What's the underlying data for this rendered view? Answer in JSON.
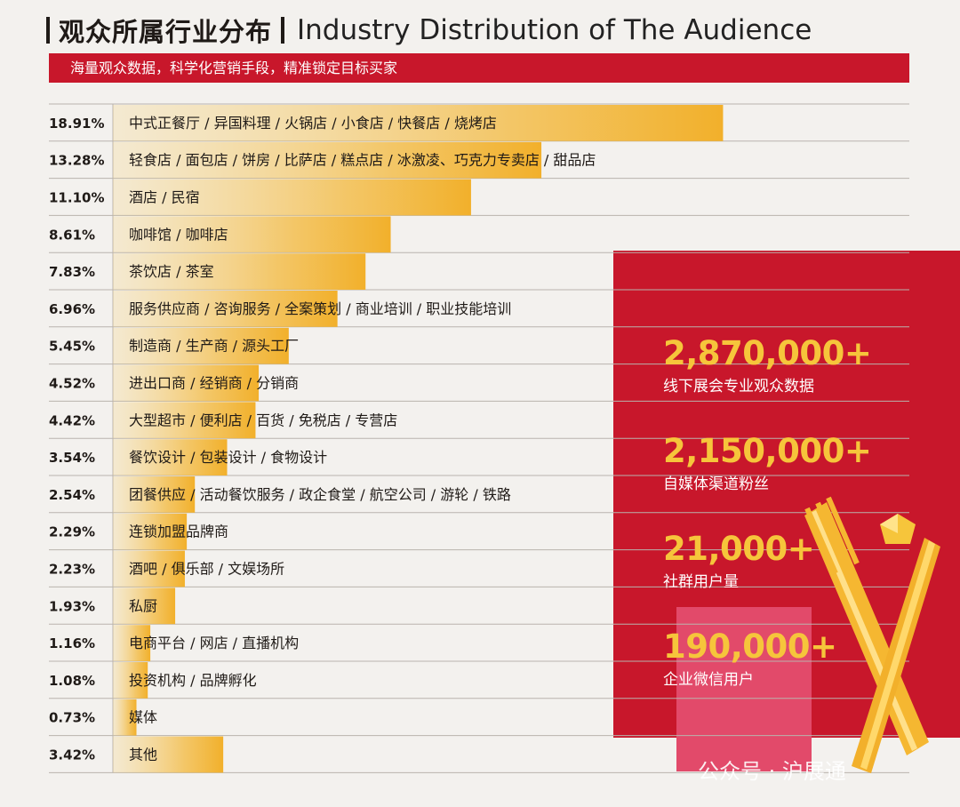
{
  "header": {
    "title_zh": "观众所属行业分布",
    "title_en": "Industry Distribution of The Audience",
    "subtitle": "海量观众数据，科学化营销手段，精准锁定目标买家"
  },
  "stats": [
    {
      "value": "2,870,000+",
      "label": "线下展会专业观众数据"
    },
    {
      "value": "2,150,000+",
      "label": "自媒体渠道粉丝"
    },
    {
      "value": "21,000+",
      "label": "社群用户量"
    },
    {
      "value": "190,000+",
      "label": "企业微信用户"
    }
  ],
  "watermark": "公众号 · 沪展通",
  "colors": {
    "accent_red": "#c8172b",
    "bar_gold": "#f2b02b",
    "stat_yellow": "#f6c53b",
    "pink": "#e24a6a"
  },
  "chart_data": {
    "type": "bar",
    "orientation": "horizontal",
    "categories": [
      "中式正餐厅 / 异国料理 / 火锅店 / 小食店 / 快餐店 / 烧烤店",
      "轻食店 / 面包店 / 饼房 / 比萨店 / 糕点店 / 冰激凌、巧克力专卖店 / 甜品店",
      "酒店 / 民宿",
      "咖啡馆 / 咖啡店",
      "茶饮店 / 茶室",
      "服务供应商 / 咨询服务 / 全案策划 / 商业培训 / 职业技能培训",
      "制造商 / 生产商 / 源头工厂",
      "进出口商 / 经销商 / 分销商",
      "大型超市 / 便利店 / 百货 / 免税店 / 专营店",
      "餐饮设计 / 包装设计 / 食物设计",
      "团餐供应 / 活动餐饮服务 / 政企食堂 / 航空公司 / 游轮 / 铁路",
      "连锁加盟品牌商",
      "酒吧 / 俱乐部 / 文娱场所",
      "私厨",
      "电商平台 / 网店 / 直播机构",
      "投资机构 / 品牌孵化",
      "媒体",
      "其他"
    ],
    "values": [
      18.91,
      13.28,
      11.1,
      8.61,
      7.83,
      6.96,
      5.45,
      4.52,
      4.42,
      3.54,
      2.54,
      2.29,
      2.23,
      1.93,
      1.16,
      1.08,
      0.73,
      3.42
    ],
    "value_labels": [
      "18.91%",
      "13.28%",
      "11.10%",
      "8.61%",
      "7.83%",
      "6.96%",
      "5.45%",
      "4.52%",
      "4.42%",
      "3.54%",
      "2.54%",
      "2.29%",
      "2.23%",
      "1.93%",
      "1.16%",
      "1.08%",
      "0.73%",
      "3.42%"
    ],
    "unit": "%"
  }
}
